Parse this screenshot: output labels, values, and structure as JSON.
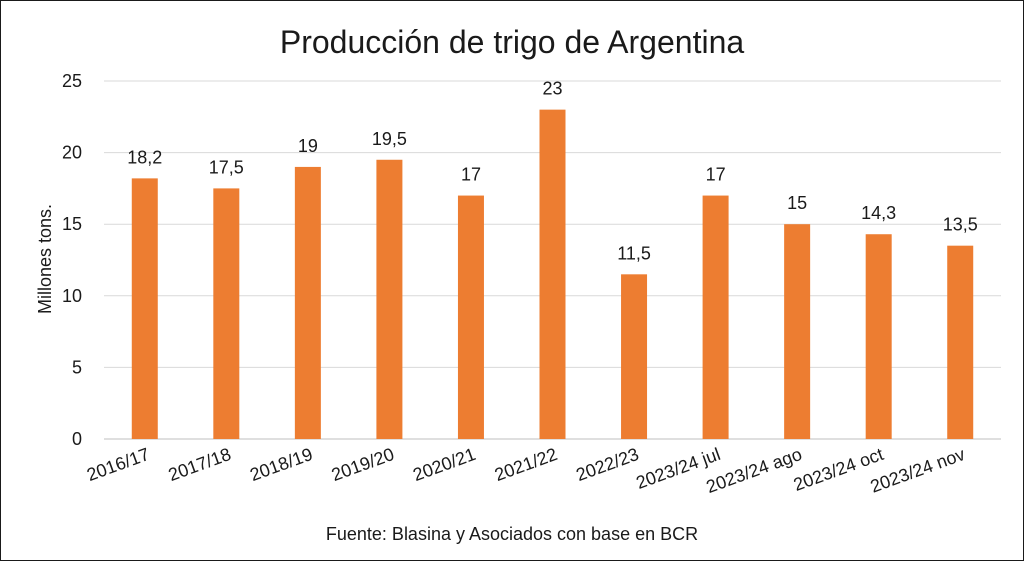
{
  "chart_data": {
    "type": "bar",
    "title": "Producción de trigo de Argentina",
    "xlabel": "",
    "ylabel": "Millones tons.",
    "source": "Fuente: Blasina y Asociados con base en BCR",
    "categories": [
      "2016/17",
      "2017/18",
      "2018/19",
      "2019/20",
      "2020/21",
      "2021/22",
      "2022/23",
      "2023/24 jul",
      "2023/24 ago",
      "2023/24 oct",
      "2023/24 nov"
    ],
    "values": [
      18.2,
      17.5,
      19,
      19.5,
      17,
      23,
      11.5,
      17,
      15,
      14.3,
      13.5
    ],
    "data_labels": [
      "18,2",
      "17,5",
      "19",
      "19,5",
      "17",
      "23",
      "11,5",
      "17",
      "15",
      "14,3",
      "13,5"
    ],
    "yticks": [
      0,
      5,
      10,
      15,
      20,
      25
    ],
    "ylim": [
      0,
      25
    ],
    "grid": true,
    "legend": "none",
    "colors": {
      "bar": "#ED7D31",
      "grid": "#D9D9D9",
      "axis": "#BFBFBF",
      "text": "#1a1a1a"
    }
  }
}
